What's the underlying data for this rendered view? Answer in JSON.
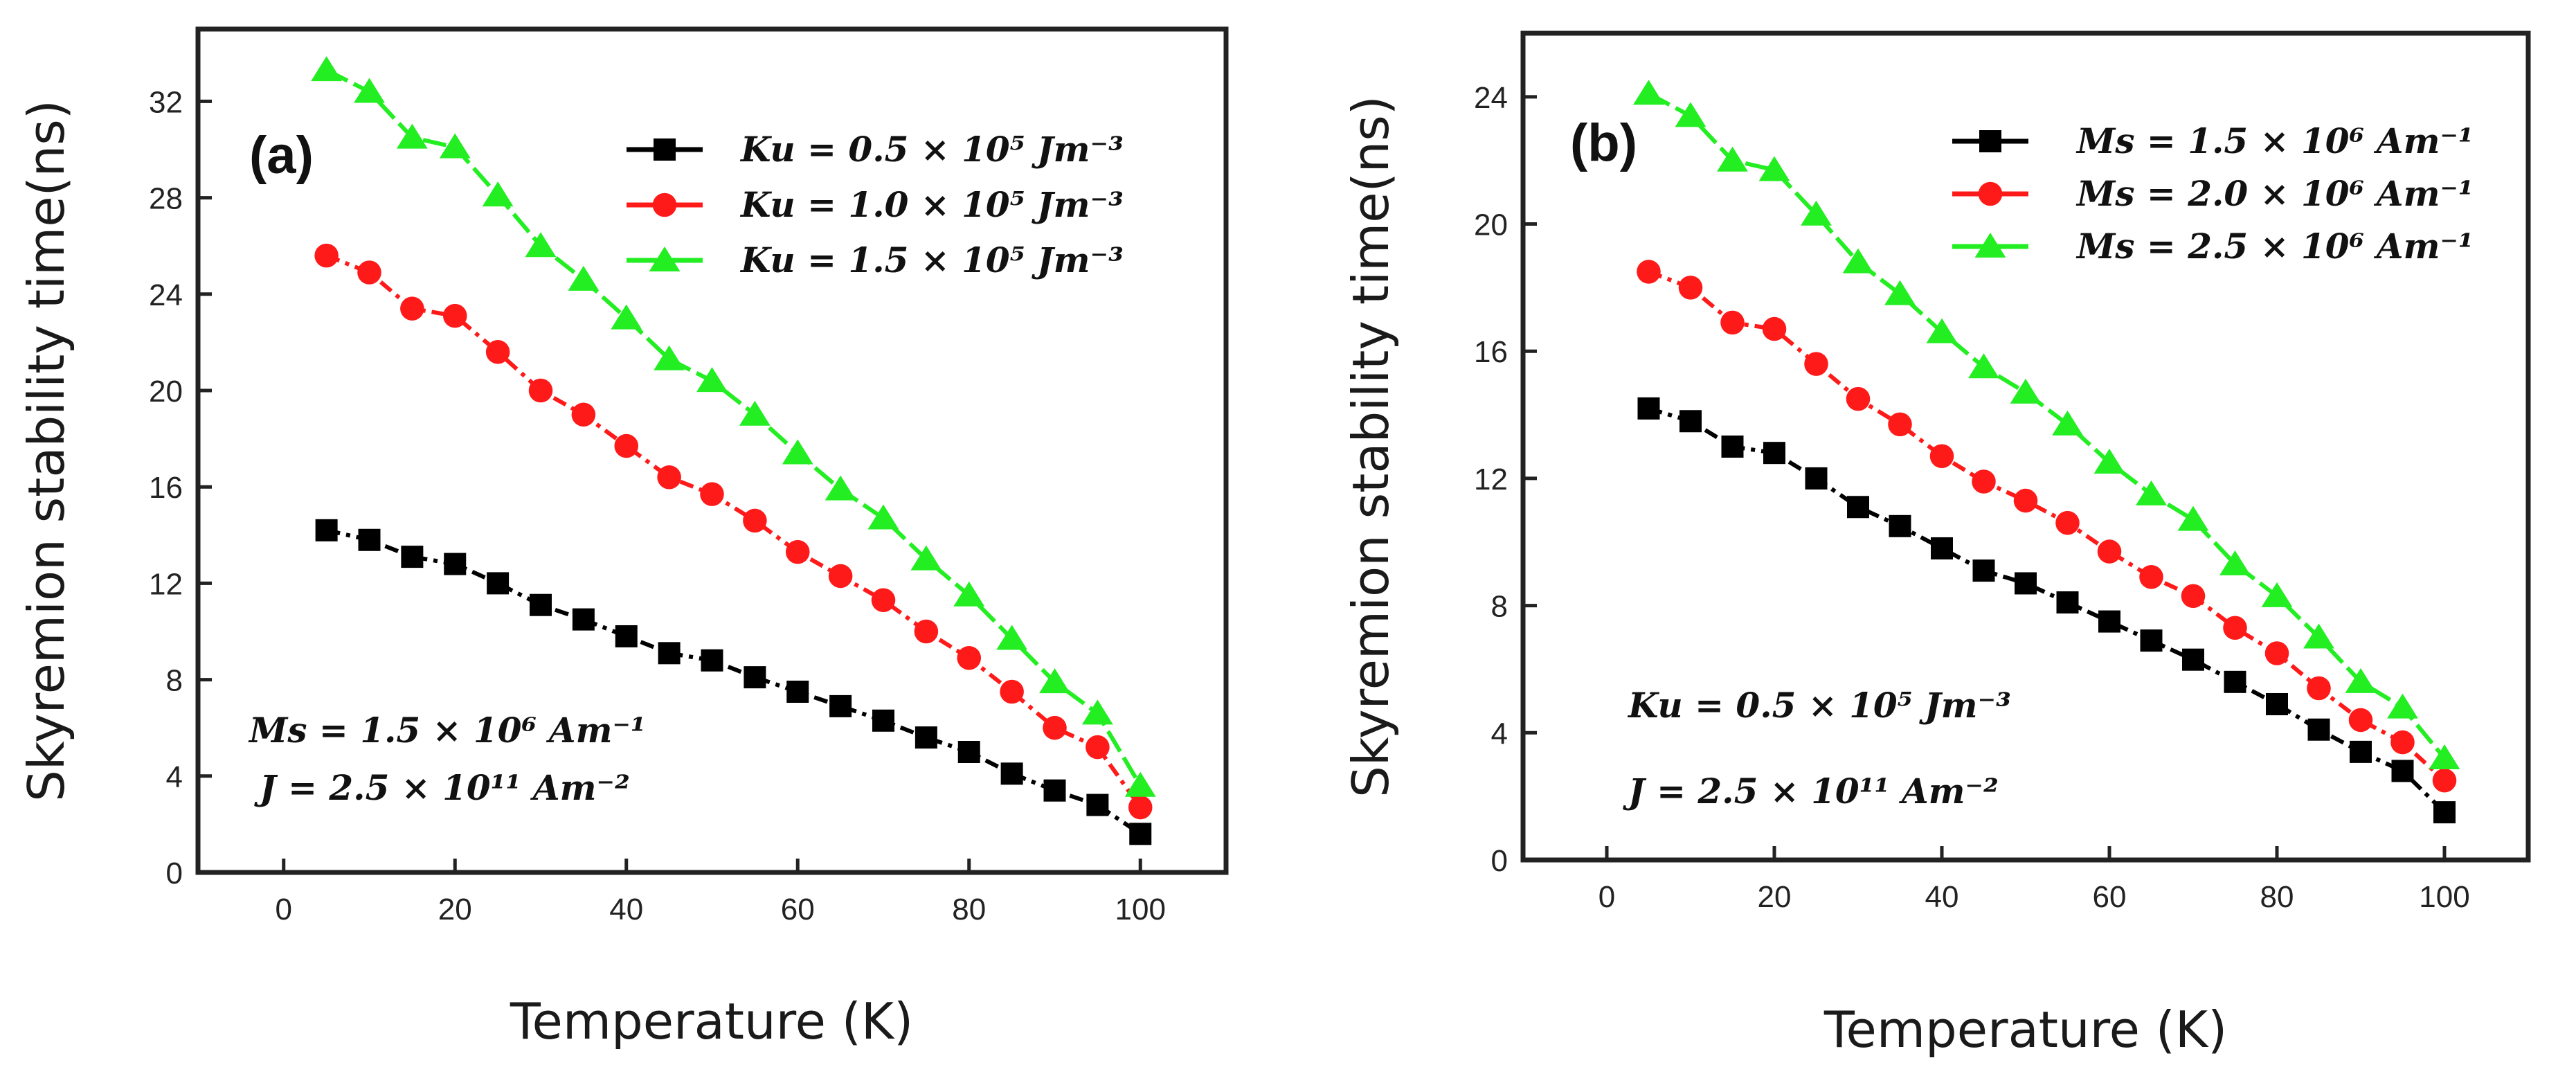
{
  "chart_data": [
    {
      "type": "line",
      "panel_label": "(a)",
      "xlabel": "Temperature (K)",
      "ylabel": "Skyremion stability time(ns)",
      "xlim": [
        -10,
        110
      ],
      "ylim": [
        0,
        35
      ],
      "xticks": [
        0,
        20,
        40,
        60,
        80,
        100
      ],
      "yticks": [
        0,
        4,
        8,
        12,
        16,
        20,
        24,
        28,
        32
      ],
      "x": [
        5,
        10,
        15,
        20,
        25,
        30,
        35,
        40,
        45,
        50,
        55,
        60,
        65,
        70,
        75,
        80,
        85,
        90,
        95,
        100
      ],
      "legend_position": "top-right",
      "series": [
        {
          "name": "Ku = 0.5 × 10⁵ Jm⁻³",
          "color": "#000000",
          "marker": "square",
          "values": [
            14.2,
            13.8,
            13.1,
            12.8,
            12.0,
            11.1,
            10.5,
            9.8,
            9.1,
            8.8,
            8.1,
            7.5,
            6.9,
            6.3,
            5.6,
            5.0,
            4.1,
            3.4,
            2.8,
            1.6
          ]
        },
        {
          "name": "Ku = 1.0 × 10⁵ Jm⁻³",
          "color": "#ff1a1a",
          "marker": "circle",
          "values": [
            25.6,
            24.9,
            23.4,
            23.1,
            21.6,
            20.0,
            19.0,
            17.7,
            16.4,
            15.7,
            14.6,
            13.3,
            12.3,
            11.3,
            10.0,
            8.9,
            7.5,
            6.0,
            5.2,
            2.7
          ]
        },
        {
          "name": "Ku = 1.5 × 10⁵ Jm⁻³",
          "color": "#22ee22",
          "marker": "triangle",
          "values": [
            33.3,
            32.4,
            30.5,
            30.1,
            28.1,
            26.0,
            24.6,
            23.0,
            21.3,
            20.4,
            19.0,
            17.4,
            15.9,
            14.7,
            13.0,
            11.5,
            9.7,
            7.9,
            6.6,
            3.6
          ]
        }
      ],
      "annotations": [
        "Ms = 1.5 × 10⁶ Am⁻¹",
        "J = 2.5 × 10¹¹ Am⁻²"
      ]
    },
    {
      "type": "line",
      "panel_label": "(b)",
      "xlabel": "Temperature (K)",
      "ylabel": "Skyremion stability time(ns)",
      "xlim": [
        -10,
        110
      ],
      "ylim": [
        0,
        26
      ],
      "xticks": [
        0,
        20,
        40,
        60,
        80,
        100
      ],
      "yticks": [
        0,
        4,
        8,
        12,
        16,
        20,
        24
      ],
      "x": [
        5,
        10,
        15,
        20,
        25,
        30,
        35,
        40,
        45,
        50,
        55,
        60,
        65,
        70,
        75,
        80,
        85,
        90,
        95,
        100
      ],
      "legend_position": "top-right",
      "series": [
        {
          "name": "Ms = 1.5 × 10⁶ Am⁻¹",
          "color": "#000000",
          "marker": "square",
          "values": [
            14.2,
            13.8,
            13.0,
            12.8,
            12.0,
            11.1,
            10.5,
            9.8,
            9.1,
            8.7,
            8.1,
            7.5,
            6.9,
            6.3,
            5.6,
            4.9,
            4.1,
            3.4,
            2.8,
            1.5
          ]
        },
        {
          "name": "Ms = 2.0 × 10⁶ Am⁻¹",
          "color": "#ff1a1a",
          "marker": "circle",
          "values": [
            18.5,
            18.0,
            16.9,
            16.7,
            15.6,
            14.5,
            13.7,
            12.7,
            11.9,
            11.3,
            10.6,
            9.7,
            8.9,
            8.3,
            7.3,
            6.5,
            5.4,
            4.4,
            3.7,
            2.5
          ]
        },
        {
          "name": "Ms = 2.5 × 10⁶ Am⁻¹",
          "color": "#22ee22",
          "marker": "triangle",
          "values": [
            24.1,
            23.4,
            22.0,
            21.7,
            20.3,
            18.8,
            17.8,
            16.6,
            15.5,
            14.7,
            13.7,
            12.5,
            11.5,
            10.7,
            9.3,
            8.3,
            7.0,
            5.6,
            4.8,
            3.2
          ]
        }
      ],
      "annotations": [
        "Ku = 0.5 × 10⁵ Jm⁻³",
        "J = 2.5 × 10¹¹ Am⁻²"
      ]
    }
  ]
}
